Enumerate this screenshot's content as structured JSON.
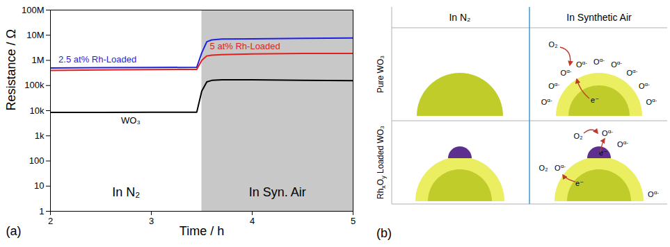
{
  "chart_data": {
    "type": "line",
    "panel_label": "(a)",
    "x_label": "Time / h",
    "y_label": "Resistance / Ω",
    "log": "y",
    "grid": false,
    "xlim": [
      2,
      5
    ],
    "xticks": [
      2,
      3,
      4,
      5
    ],
    "ylim": [
      1,
      100000000
    ],
    "yticks": [
      1,
      10,
      100,
      {
        "value": 1000,
        "label": "1k"
      },
      {
        "value": 10000,
        "label": "10k"
      },
      {
        "value": 100000,
        "label": "100k"
      },
      {
        "value": 1000000,
        "label": "1M"
      },
      {
        "value": 10000000,
        "label": "10M"
      },
      {
        "value": 100000000,
        "label": "100M"
      }
    ],
    "regions": [
      {
        "label": "In N₂",
        "x1": 2,
        "x2": 3.5
      },
      {
        "label": "In Syn. Air",
        "x1": 3.5,
        "x2": 5,
        "color": "#c8c8c8"
      }
    ],
    "x": [
      2,
      2.5,
      3,
      3.45,
      3.5,
      3.55,
      3.6,
      3.7,
      4,
      4.5,
      5
    ],
    "series": [
      {
        "name": "WO₃",
        "color": "#000000",
        "values": [
          8500,
          8500,
          8600,
          8600,
          60000,
          140000,
          160000,
          170000,
          170000,
          160000,
          155000
        ]
      },
      {
        "name": "2.5 at% Rh-Loaded",
        "color": "#1f1fe0",
        "values": [
          500000,
          510000,
          520000,
          530000,
          2000000,
          5500000,
          6500000,
          7000000,
          7200000,
          7500000,
          7800000
        ]
      },
      {
        "name": "5 at% Rh-Loaded",
        "color": "#e01f1f",
        "values": [
          400000,
          420000,
          430000,
          440000,
          1000000,
          1500000,
          1600000,
          1700000,
          1800000,
          1900000,
          1900000
        ]
      }
    ],
    "annotations": [
      {
        "text": "2.5 at% Rh-Loaded",
        "x": 2.08,
        "y": 1100000,
        "color": "#1f1fe0"
      },
      {
        "text": "5 at% Rh-Loaded",
        "x": 3.58,
        "y": 3500000,
        "color": "#e01f1f"
      },
      {
        "text": "WO₃",
        "x": 2.7,
        "y": 4000,
        "color": "#000000"
      }
    ]
  },
  "diagram": {
    "panel_label": "(b)",
    "column_heads": [
      "In N₂",
      "In Synthetic Air"
    ],
    "row_heads": [
      "Pure WO₃",
      [
        {
          "text": "Rh"
        },
        {
          "text": "x",
          "sub": true
        },
        {
          "text": "O"
        },
        {
          "text": "y",
          "sub": true
        },
        {
          "text": " Loaded WO₃"
        }
      ]
    ],
    "ion": {
      "text": "O",
      "superscript": "α-"
    },
    "molecule": "O₂",
    "electron": "e⁻"
  }
}
